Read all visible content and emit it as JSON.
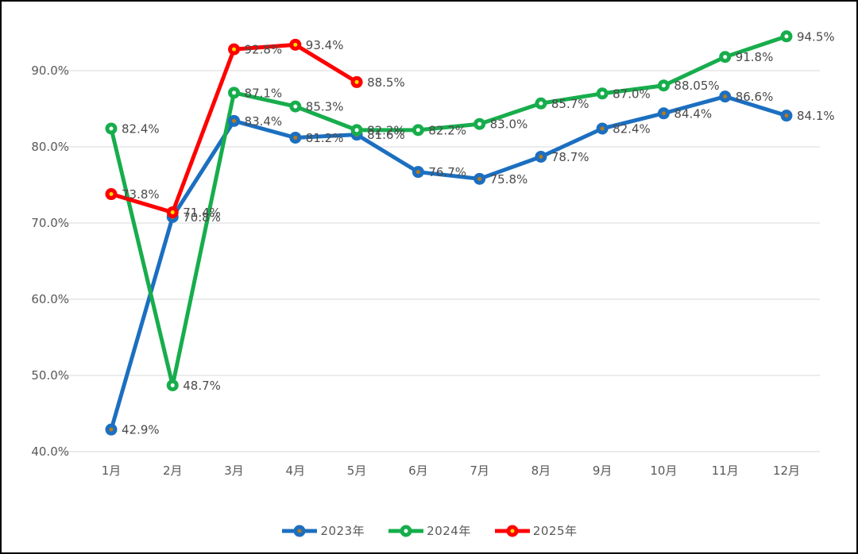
{
  "chart_data": {
    "type": "line",
    "title": "",
    "xlabel": "",
    "ylabel": "",
    "grid": true,
    "legend_position": "bottom",
    "categories": [
      "1月",
      "2月",
      "3月",
      "4月",
      "5月",
      "6月",
      "7月",
      "8月",
      "9月",
      "10月",
      "11月",
      "12月"
    ],
    "y_axis": {
      "ticks": [
        "40.0%",
        "50.0%",
        "60.0%",
        "70.0%",
        "80.0%",
        "90.0%"
      ],
      "tick_values": [
        40,
        50,
        60,
        70,
        80,
        90
      ],
      "ylim": [
        40,
        95
      ]
    },
    "series": [
      {
        "name": "2023年",
        "color": "#1c6fc0",
        "marker_dot_color": "#b97a1a",
        "values": [
          42.9,
          70.8,
          83.4,
          81.2,
          81.6,
          76.7,
          75.8,
          78.7,
          82.4,
          84.4,
          86.6,
          84.1
        ],
        "labels": [
          "42.9%",
          "70.8%",
          "83.4%",
          "81.2%",
          "81.6%",
          "76.7%",
          "75.8%",
          "78.7%",
          "82.4%",
          "84.4%",
          "86.6%",
          "84.1%"
        ]
      },
      {
        "name": "2024年",
        "color": "#17ad4c",
        "marker_dot_color": "#ffffff",
        "values": [
          82.4,
          48.7,
          87.1,
          85.3,
          82.2,
          82.2,
          83.0,
          85.7,
          87.0,
          88.05,
          91.8,
          94.5
        ],
        "labels": [
          "82.4%",
          "48.7%",
          "87.1%",
          "85.3%",
          "82.2%",
          "82.2%",
          "83.0%",
          "85.7%",
          "87.0%",
          "88.05%",
          "91.8%",
          "94.5%"
        ]
      },
      {
        "name": "2025年",
        "color": "#ff0000",
        "marker_dot_color": "#ffe000",
        "values": [
          73.8,
          71.4,
          92.8,
          93.4,
          88.5
        ],
        "labels": [
          "73.8%",
          "71.4%",
          "92.8%",
          "93.4%",
          "88.5%"
        ]
      }
    ],
    "styles": {
      "gridline_color": "#d9d9d9",
      "axis_text_color": "#595959",
      "data_label_color": "#4a4a4a"
    }
  }
}
